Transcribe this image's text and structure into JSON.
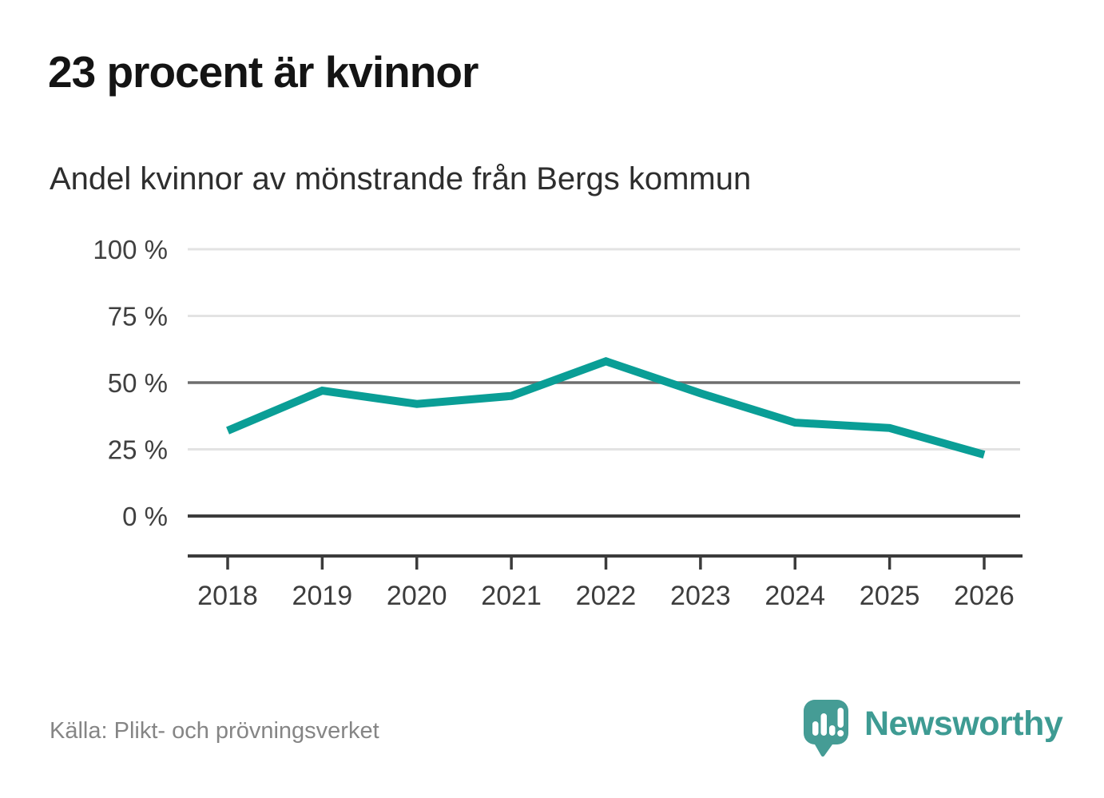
{
  "page": {
    "title": "23 procent är kvinnor",
    "subtitle": "Andel kvinnor av mönstrande från Bergs kommun",
    "source": "Källa: Plikt- och prövningsverket",
    "brand": {
      "name": "Newsworthy",
      "logo_icon": "speech-bubble-bar-chart-icon"
    }
  },
  "colors": {
    "line": "#0a9e96",
    "logo": "#459c95",
    "wordmark": "#3e9b93",
    "grid_light": "#e3e3e3",
    "grid_medium": "#6e6e6e",
    "grid_dark": "#3b3b3b",
    "axis": "#3b3b3b",
    "bar_white": "#ffffff"
  },
  "chart_data": {
    "type": "line",
    "title": "23 procent är kvinnor",
    "subtitle": "Andel kvinnor av mönstrande från Bergs kommun",
    "x": [
      2018,
      2019,
      2020,
      2021,
      2022,
      2023,
      2024,
      2025,
      2026
    ],
    "series": [
      {
        "name": "Andel kvinnor av mönstrande",
        "values": [
          32,
          47,
          42,
          45,
          58,
          46,
          35,
          33,
          23
        ]
      }
    ],
    "unit": "%",
    "ylim": [
      0,
      100
    ],
    "yticks": [
      {
        "value": 100,
        "label": "100 %",
        "emphasis": "light"
      },
      {
        "value": 75,
        "label": "75 %",
        "emphasis": "light"
      },
      {
        "value": 50,
        "label": "50 %",
        "emphasis": "medium"
      },
      {
        "value": 25,
        "label": "25 %",
        "emphasis": "light"
      },
      {
        "value": 0,
        "label": "0 %",
        "emphasis": "dark"
      }
    ],
    "grid": "horizontal-only",
    "legend": "none"
  }
}
